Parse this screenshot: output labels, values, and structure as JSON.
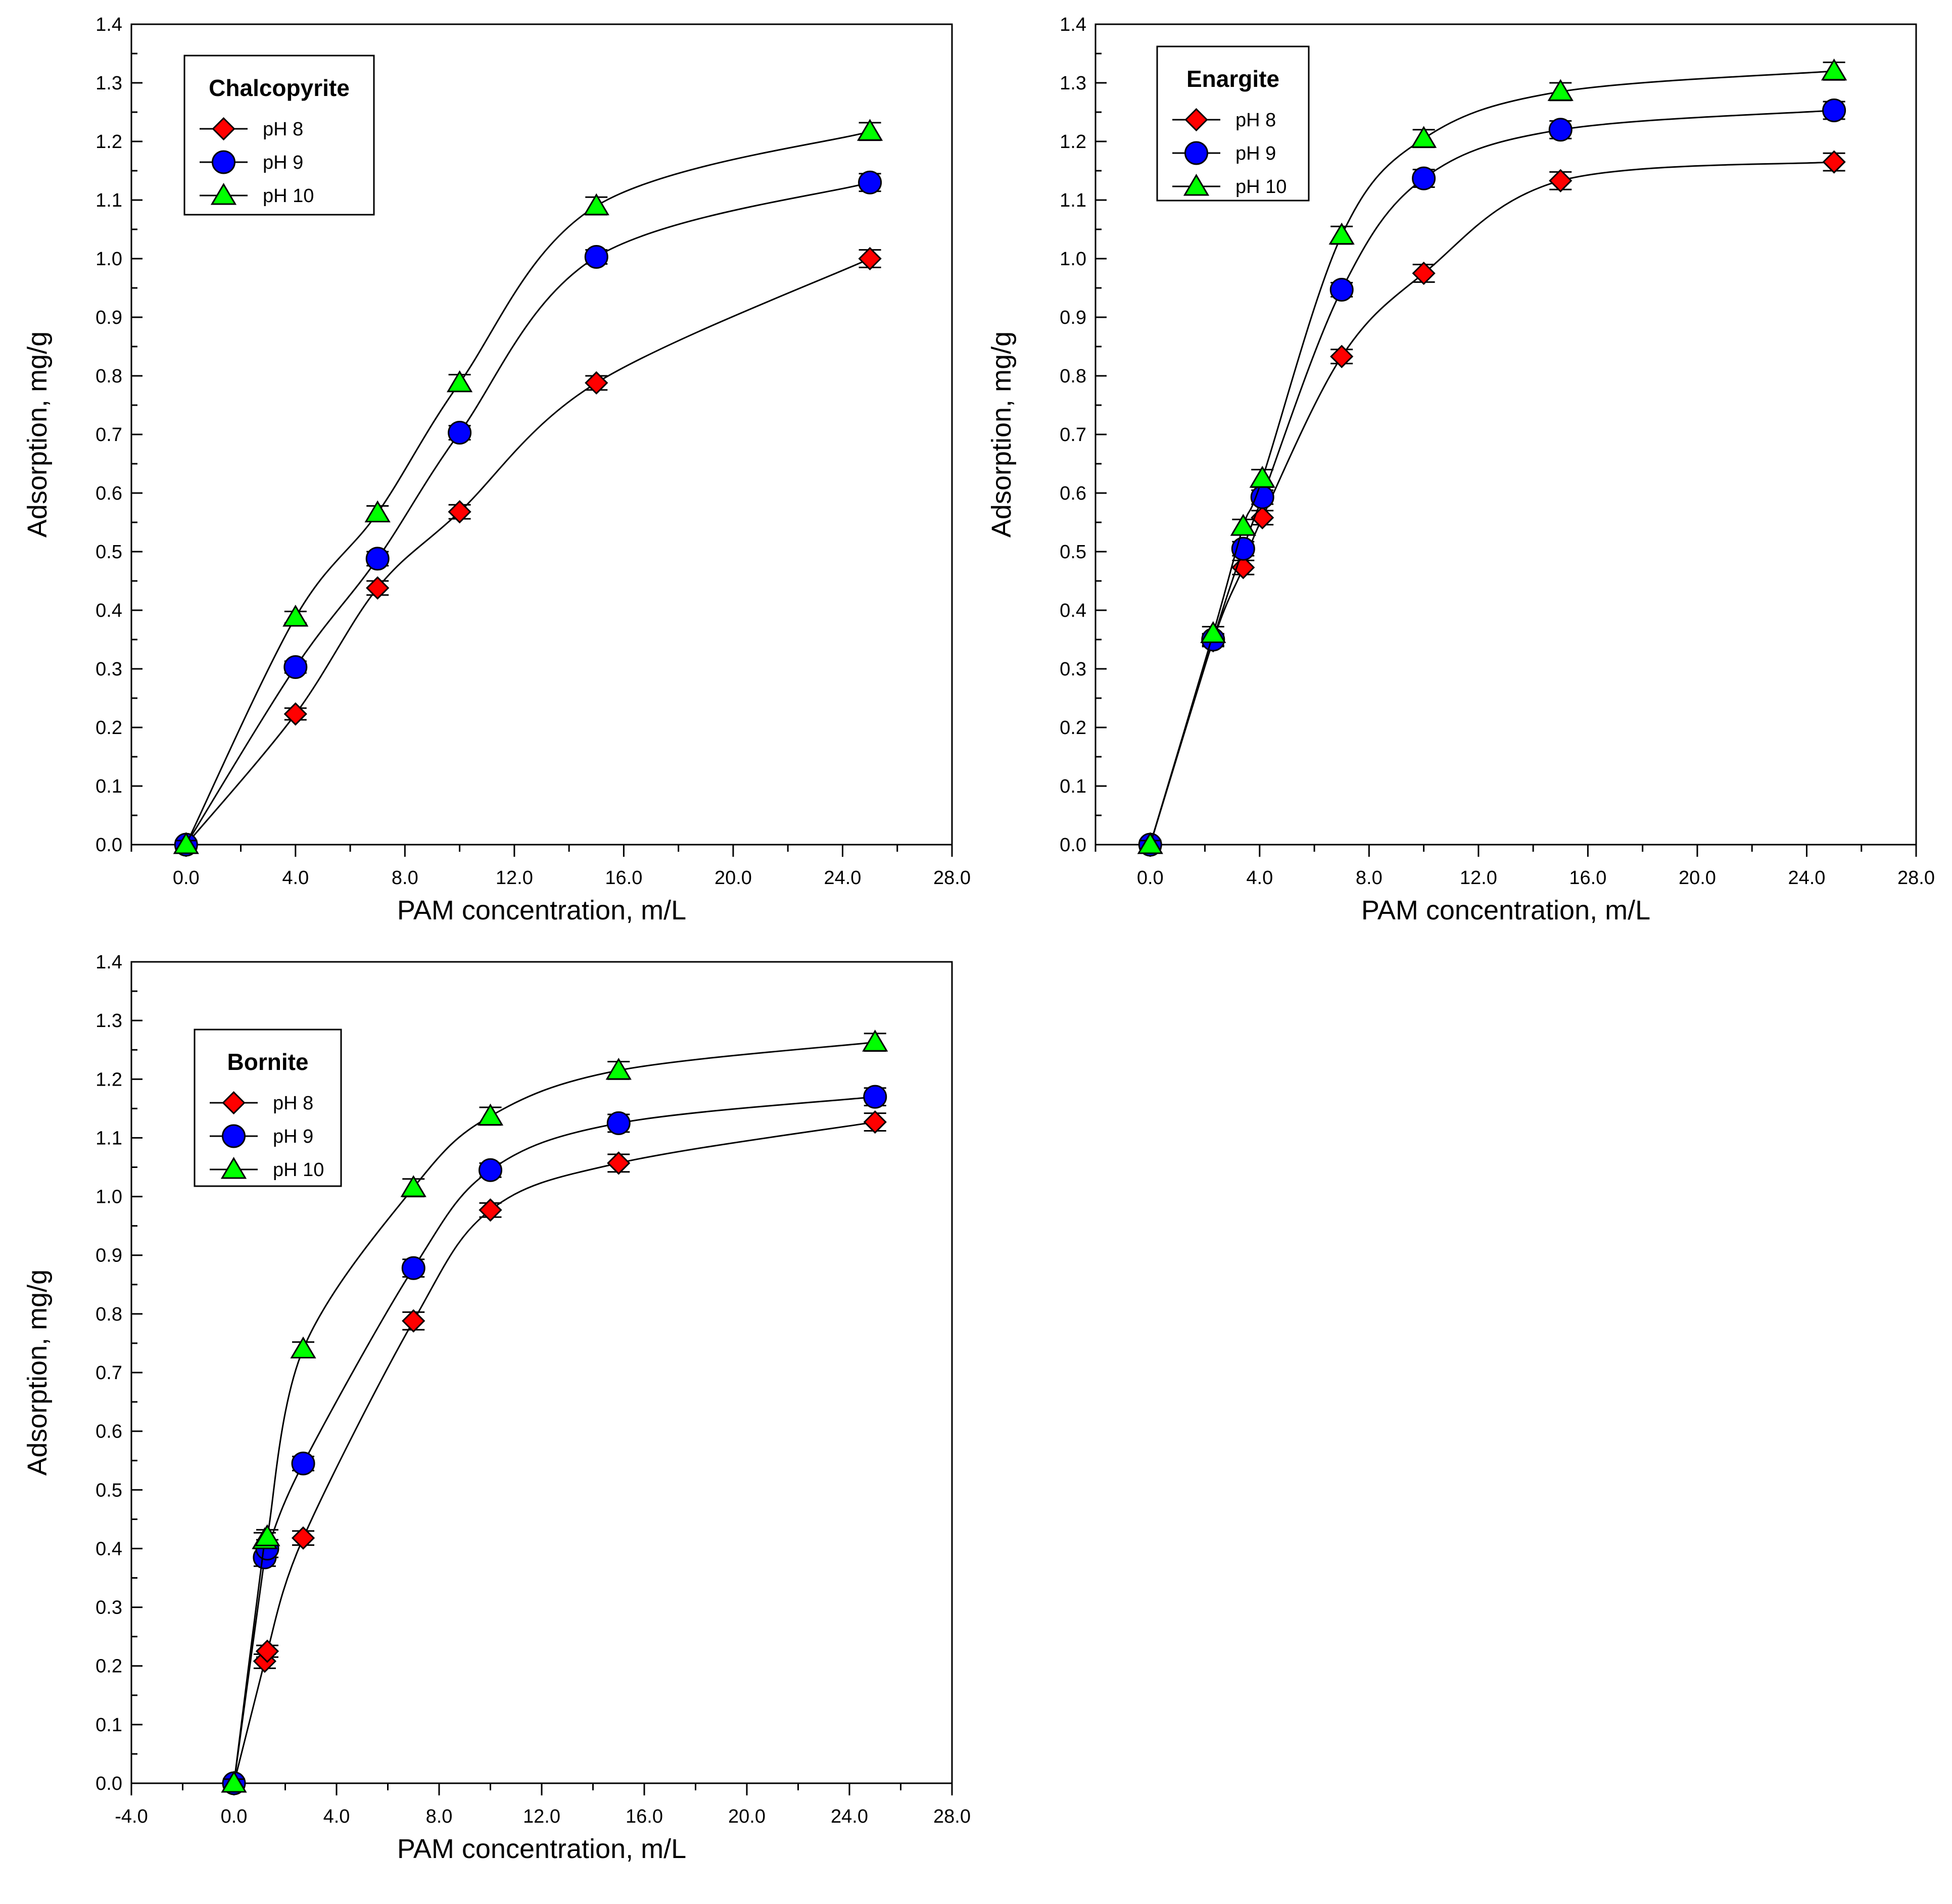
{
  "colors": {
    "pH 8": "#ff0000",
    "pH 9": "#0000ff",
    "pH 10": "#00ff00",
    "stroke": "#000000"
  },
  "chart_data": [
    {
      "type": "line",
      "title": "Chalcopyrite",
      "xlabel": "PAM concentration, m/L",
      "ylabel": "Adsorption, mg/g",
      "xlim": [
        -2.0,
        28.0
      ],
      "ylim": [
        0.0,
        1.4
      ],
      "x_ticks": [
        "0.0",
        "4.0",
        "8.0",
        "12.0",
        "16.0",
        "20.0",
        "24.0",
        "28.0"
      ],
      "y_ticks": [
        "0.0",
        "0.1",
        "0.2",
        "0.3",
        "0.4",
        "0.5",
        "0.6",
        "0.7",
        "0.8",
        "0.9",
        "1.0",
        "1.1",
        "1.2",
        "1.3",
        "1.4"
      ],
      "legend_position": "top-left",
      "series": [
        {
          "name": "pH 8",
          "marker": "diamond",
          "x": [
            0,
            4,
            7,
            10,
            15,
            25
          ],
          "y": [
            0.0,
            0.223,
            0.438,
            0.568,
            0.788,
            1.0
          ],
          "err": [
            0.007,
            0.01,
            0.012,
            0.012,
            0.012,
            0.015
          ]
        },
        {
          "name": "pH 9",
          "marker": "circle",
          "x": [
            0,
            4,
            7,
            10,
            15,
            25
          ],
          "y": [
            0.0,
            0.303,
            0.488,
            0.703,
            1.003,
            1.13
          ],
          "err": [
            0.007,
            0.01,
            0.012,
            0.012,
            0.012,
            0.015
          ]
        },
        {
          "name": "pH 10",
          "marker": "triangle",
          "x": [
            0,
            4,
            7,
            10,
            15,
            25
          ],
          "y": [
            0.0,
            0.388,
            0.566,
            0.788,
            1.09,
            1.217
          ],
          "err": [
            0.007,
            0.01,
            0.012,
            0.014,
            0.015,
            0.015
          ]
        }
      ]
    },
    {
      "type": "line",
      "title": "Enargite",
      "xlabel": "PAM concentration, m/L",
      "ylabel": "Adsorption, mg/g",
      "xlim": [
        -2.0,
        28.0
      ],
      "ylim": [
        0.0,
        1.4
      ],
      "x_ticks": [
        "0.0",
        "4.0",
        "8.0",
        "12.0",
        "16.0",
        "20.0",
        "24.0",
        "28.0"
      ],
      "y_ticks": [
        "0.0",
        "0.1",
        "0.2",
        "0.3",
        "0.4",
        "0.5",
        "0.6",
        "0.7",
        "0.8",
        "0.9",
        "1.0",
        "1.1",
        "1.2",
        "1.3",
        "1.4"
      ],
      "legend_position": "top-right",
      "series": [
        {
          "name": "pH 8",
          "marker": "diamond",
          "x": [
            0,
            2.3,
            3.4,
            4.1,
            7,
            10,
            15,
            25
          ],
          "y": [
            0.0,
            0.348,
            0.473,
            0.558,
            0.833,
            0.975,
            1.133,
            1.165
          ],
          "err": [
            0.007,
            0.01,
            0.012,
            0.012,
            0.012,
            0.015,
            0.015,
            0.015
          ]
        },
        {
          "name": "pH 9",
          "marker": "circle",
          "x": [
            0,
            2.3,
            3.4,
            4.1,
            7,
            10,
            15,
            25
          ],
          "y": [
            0.0,
            0.35,
            0.505,
            0.593,
            0.947,
            1.137,
            1.22,
            1.253
          ],
          "err": [
            0.007,
            0.01,
            0.012,
            0.012,
            0.012,
            0.015,
            0.015,
            0.015
          ]
        },
        {
          "name": "pH 10",
          "marker": "triangle",
          "x": [
            0,
            2.3,
            3.4,
            4.1,
            7,
            10,
            15,
            25
          ],
          "y": [
            0.0,
            0.36,
            0.543,
            0.625,
            1.04,
            1.205,
            1.285,
            1.32
          ],
          "err": [
            0.007,
            0.012,
            0.012,
            0.015,
            0.015,
            0.015,
            0.015,
            0.015
          ]
        }
      ]
    },
    {
      "type": "line",
      "title": "Bornite",
      "xlabel": "PAM concentration, m/L",
      "ylabel": "Adsorption, mg/g",
      "xlim": [
        -4.0,
        28.0
      ],
      "ylim": [
        0.0,
        1.4
      ],
      "x_ticks": [
        "-4.0",
        "0.0",
        "4.0",
        "8.0",
        "12.0",
        "16.0",
        "20.0",
        "24.0",
        "28.0"
      ],
      "y_ticks": [
        "0.0",
        "0.1",
        "0.2",
        "0.3",
        "0.4",
        "0.5",
        "0.6",
        "0.7",
        "0.8",
        "0.9",
        "1.0",
        "1.1",
        "1.2",
        "1.3",
        "1.4"
      ],
      "legend_position": "top-left",
      "series": [
        {
          "name": "pH 8",
          "marker": "diamond",
          "x": [
            0,
            1.2,
            1.3,
            2.7,
            7,
            10,
            15,
            25
          ],
          "y": [
            0.0,
            0.208,
            0.225,
            0.418,
            0.788,
            0.977,
            1.057,
            1.127
          ],
          "err": [
            0.007,
            0.012,
            0.01,
            0.012,
            0.015,
            0.012,
            0.015,
            0.015
          ]
        },
        {
          "name": "pH 9",
          "marker": "circle",
          "x": [
            0,
            1.2,
            1.3,
            2.7,
            7,
            10,
            15,
            25
          ],
          "y": [
            0.0,
            0.385,
            0.4,
            0.545,
            0.878,
            1.045,
            1.125,
            1.17
          ],
          "err": [
            0.007,
            0.015,
            0.015,
            0.012,
            0.015,
            0.012,
            0.015,
            0.015
          ]
        },
        {
          "name": "pH 10",
          "marker": "triangle",
          "x": [
            0,
            1.2,
            1.3,
            2.7,
            7,
            10,
            15,
            25
          ],
          "y": [
            0.0,
            0.415,
            0.42,
            0.74,
            1.015,
            1.137,
            1.215,
            1.263
          ],
          "err": [
            0.007,
            0.012,
            0.012,
            0.012,
            0.015,
            0.015,
            0.015,
            0.015
          ]
        }
      ]
    }
  ]
}
